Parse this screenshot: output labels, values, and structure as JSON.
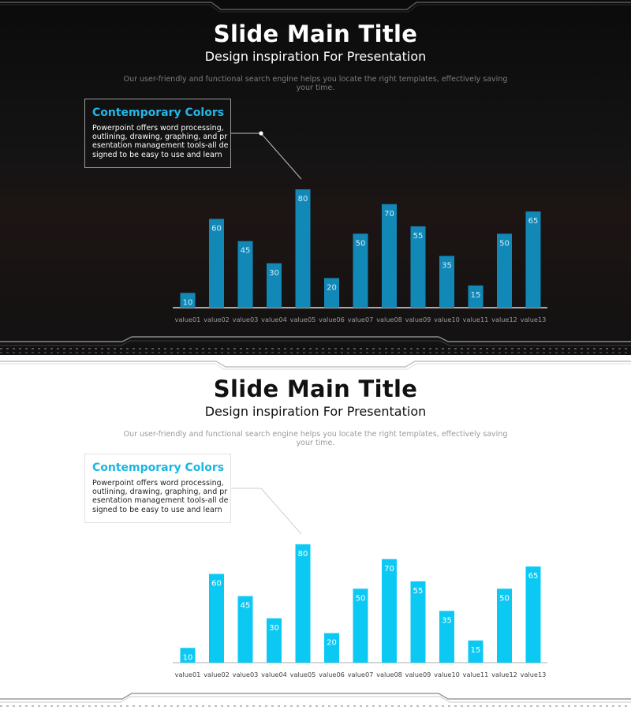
{
  "slides": [
    {
      "theme": "dark",
      "title": "Slide Main Title",
      "subtitle": "Design inspiration For Presentation",
      "description": "Our user-friendly and functional search engine helps you locate the right templates, effectively saving your time.",
      "callout": {
        "heading": "Contemporary Colors",
        "body": "Powerpoint offers word processing, outlining, drawing, graphing, and presentation management tools-all designed to be easy to use and learn"
      },
      "colors": {
        "bar": "#1288b6",
        "bar_label": "#cfeefc",
        "axis": "#d9d9d9",
        "tick": "#9a9a9a"
      }
    },
    {
      "theme": "light",
      "title": "Slide Main Title",
      "subtitle": "Design inspiration For Presentation",
      "description": "Our user-friendly and functional search engine helps you locate the right templates, effectively saving your time.",
      "callout": {
        "heading": "Contemporary Colors",
        "body": "Powerpoint offers word processing, outlining, drawing, graphing, and presentation management tools-all designed to be easy to use and learn"
      },
      "colors": {
        "bar": "#0cc9f4",
        "bar_label": "#ffffff",
        "axis": "#c8c8c8",
        "tick": "#444444"
      }
    }
  ],
  "chart_data": [
    {
      "type": "bar",
      "categories": [
        "value01",
        "value02",
        "value03",
        "value04",
        "value05",
        "value06",
        "value07",
        "value08",
        "value09",
        "value10",
        "value11",
        "value12",
        "value13"
      ],
      "values": [
        10,
        60,
        45,
        30,
        80,
        20,
        50,
        70,
        55,
        35,
        15,
        50,
        65
      ],
      "title": "",
      "xlabel": "",
      "ylabel": "",
      "ylim": [
        0,
        80
      ],
      "grid": false,
      "legend": "none"
    },
    {
      "type": "bar",
      "categories": [
        "value01",
        "value02",
        "value03",
        "value04",
        "value05",
        "value06",
        "value07",
        "value08",
        "value09",
        "value10",
        "value11",
        "value12",
        "value13"
      ],
      "values": [
        10,
        60,
        45,
        30,
        80,
        20,
        50,
        70,
        55,
        35,
        15,
        50,
        65
      ],
      "title": "",
      "xlabel": "",
      "ylabel": "",
      "ylim": [
        0,
        80
      ],
      "grid": false,
      "legend": "none"
    }
  ]
}
